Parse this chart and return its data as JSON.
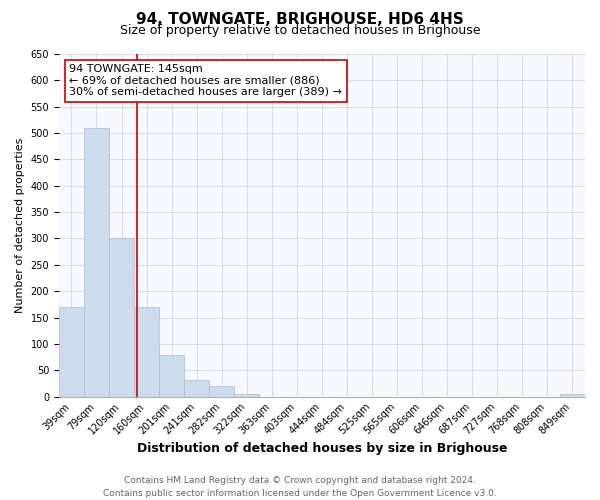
{
  "title": "94, TOWNGATE, BRIGHOUSE, HD6 4HS",
  "subtitle": "Size of property relative to detached houses in Brighouse",
  "xlabel": "Distribution of detached houses by size in Brighouse",
  "ylabel": "Number of detached properties",
  "bar_labels": [
    "39sqm",
    "79sqm",
    "120sqm",
    "160sqm",
    "201sqm",
    "241sqm",
    "282sqm",
    "322sqm",
    "363sqm",
    "403sqm",
    "444sqm",
    "484sqm",
    "525sqm",
    "565sqm",
    "606sqm",
    "646sqm",
    "687sqm",
    "727sqm",
    "768sqm",
    "808sqm",
    "849sqm"
  ],
  "bar_values": [
    170,
    510,
    300,
    170,
    78,
    32,
    20,
    5,
    0,
    0,
    0,
    0,
    0,
    0,
    0,
    0,
    0,
    0,
    0,
    0,
    5
  ],
  "bar_color": "#ccdcec",
  "bar_edge_color": "#aabccc",
  "vline_x": 2.62,
  "vline_color": "#cc0000",
  "annotation_line1": "94 TOWNGATE: 145sqm",
  "annotation_line2": "← 69% of detached houses are smaller (886)",
  "annotation_line3": "30% of semi-detached houses are larger (389) →",
  "annotation_box_color": "#ffffff",
  "annotation_box_edge_color": "#cc0000",
  "ylim": [
    0,
    650
  ],
  "yticks": [
    0,
    50,
    100,
    150,
    200,
    250,
    300,
    350,
    400,
    450,
    500,
    550,
    600,
    650
  ],
  "footer_line1": "Contains HM Land Registry data © Crown copyright and database right 2024.",
  "footer_line2": "Contains public sector information licensed under the Open Government Licence v3.0.",
  "title_fontsize": 11,
  "subtitle_fontsize": 9,
  "xlabel_fontsize": 9,
  "ylabel_fontsize": 8,
  "tick_fontsize": 7,
  "annotation_fontsize": 8,
  "footer_fontsize": 6.5
}
